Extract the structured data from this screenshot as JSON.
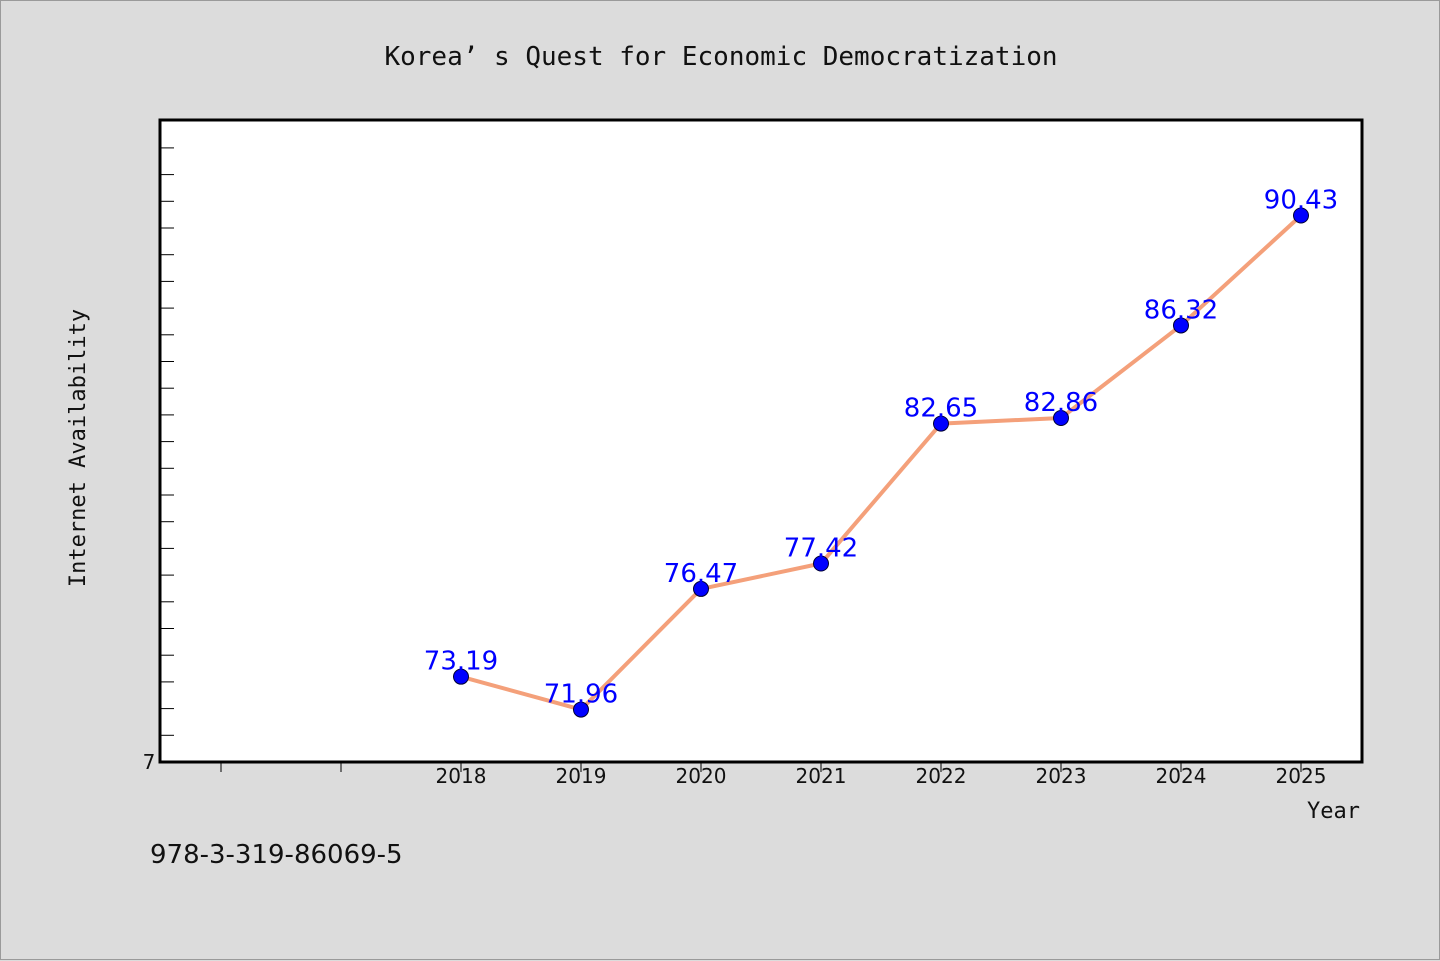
{
  "chart_data": {
    "type": "line",
    "title": "Korea’ s Quest for Economic Democratization",
    "xlabel": "Year",
    "ylabel": "Internet Availability",
    "categories": [
      "2018",
      "2019",
      "2020",
      "2021",
      "2022",
      "2023",
      "2024",
      "2025"
    ],
    "series": [
      {
        "values": [
          73.19,
          71.96,
          76.47,
          77.42,
          82.65,
          82.86,
          86.32,
          90.43
        ],
        "labels": [
          "73.19",
          "71.96",
          "76.47",
          "77.42",
          "82.65",
          "82.86",
          "86.32",
          "90.43"
        ]
      }
    ],
    "y_tick_label": "7",
    "ylim": [
      70.0,
      94.0
    ],
    "grid": false,
    "line_color": "#f4a07a",
    "marker_color": "#0000ff",
    "label_color": "#0000ff"
  },
  "footer": {
    "isbn": "978-3-319-86069-5"
  }
}
